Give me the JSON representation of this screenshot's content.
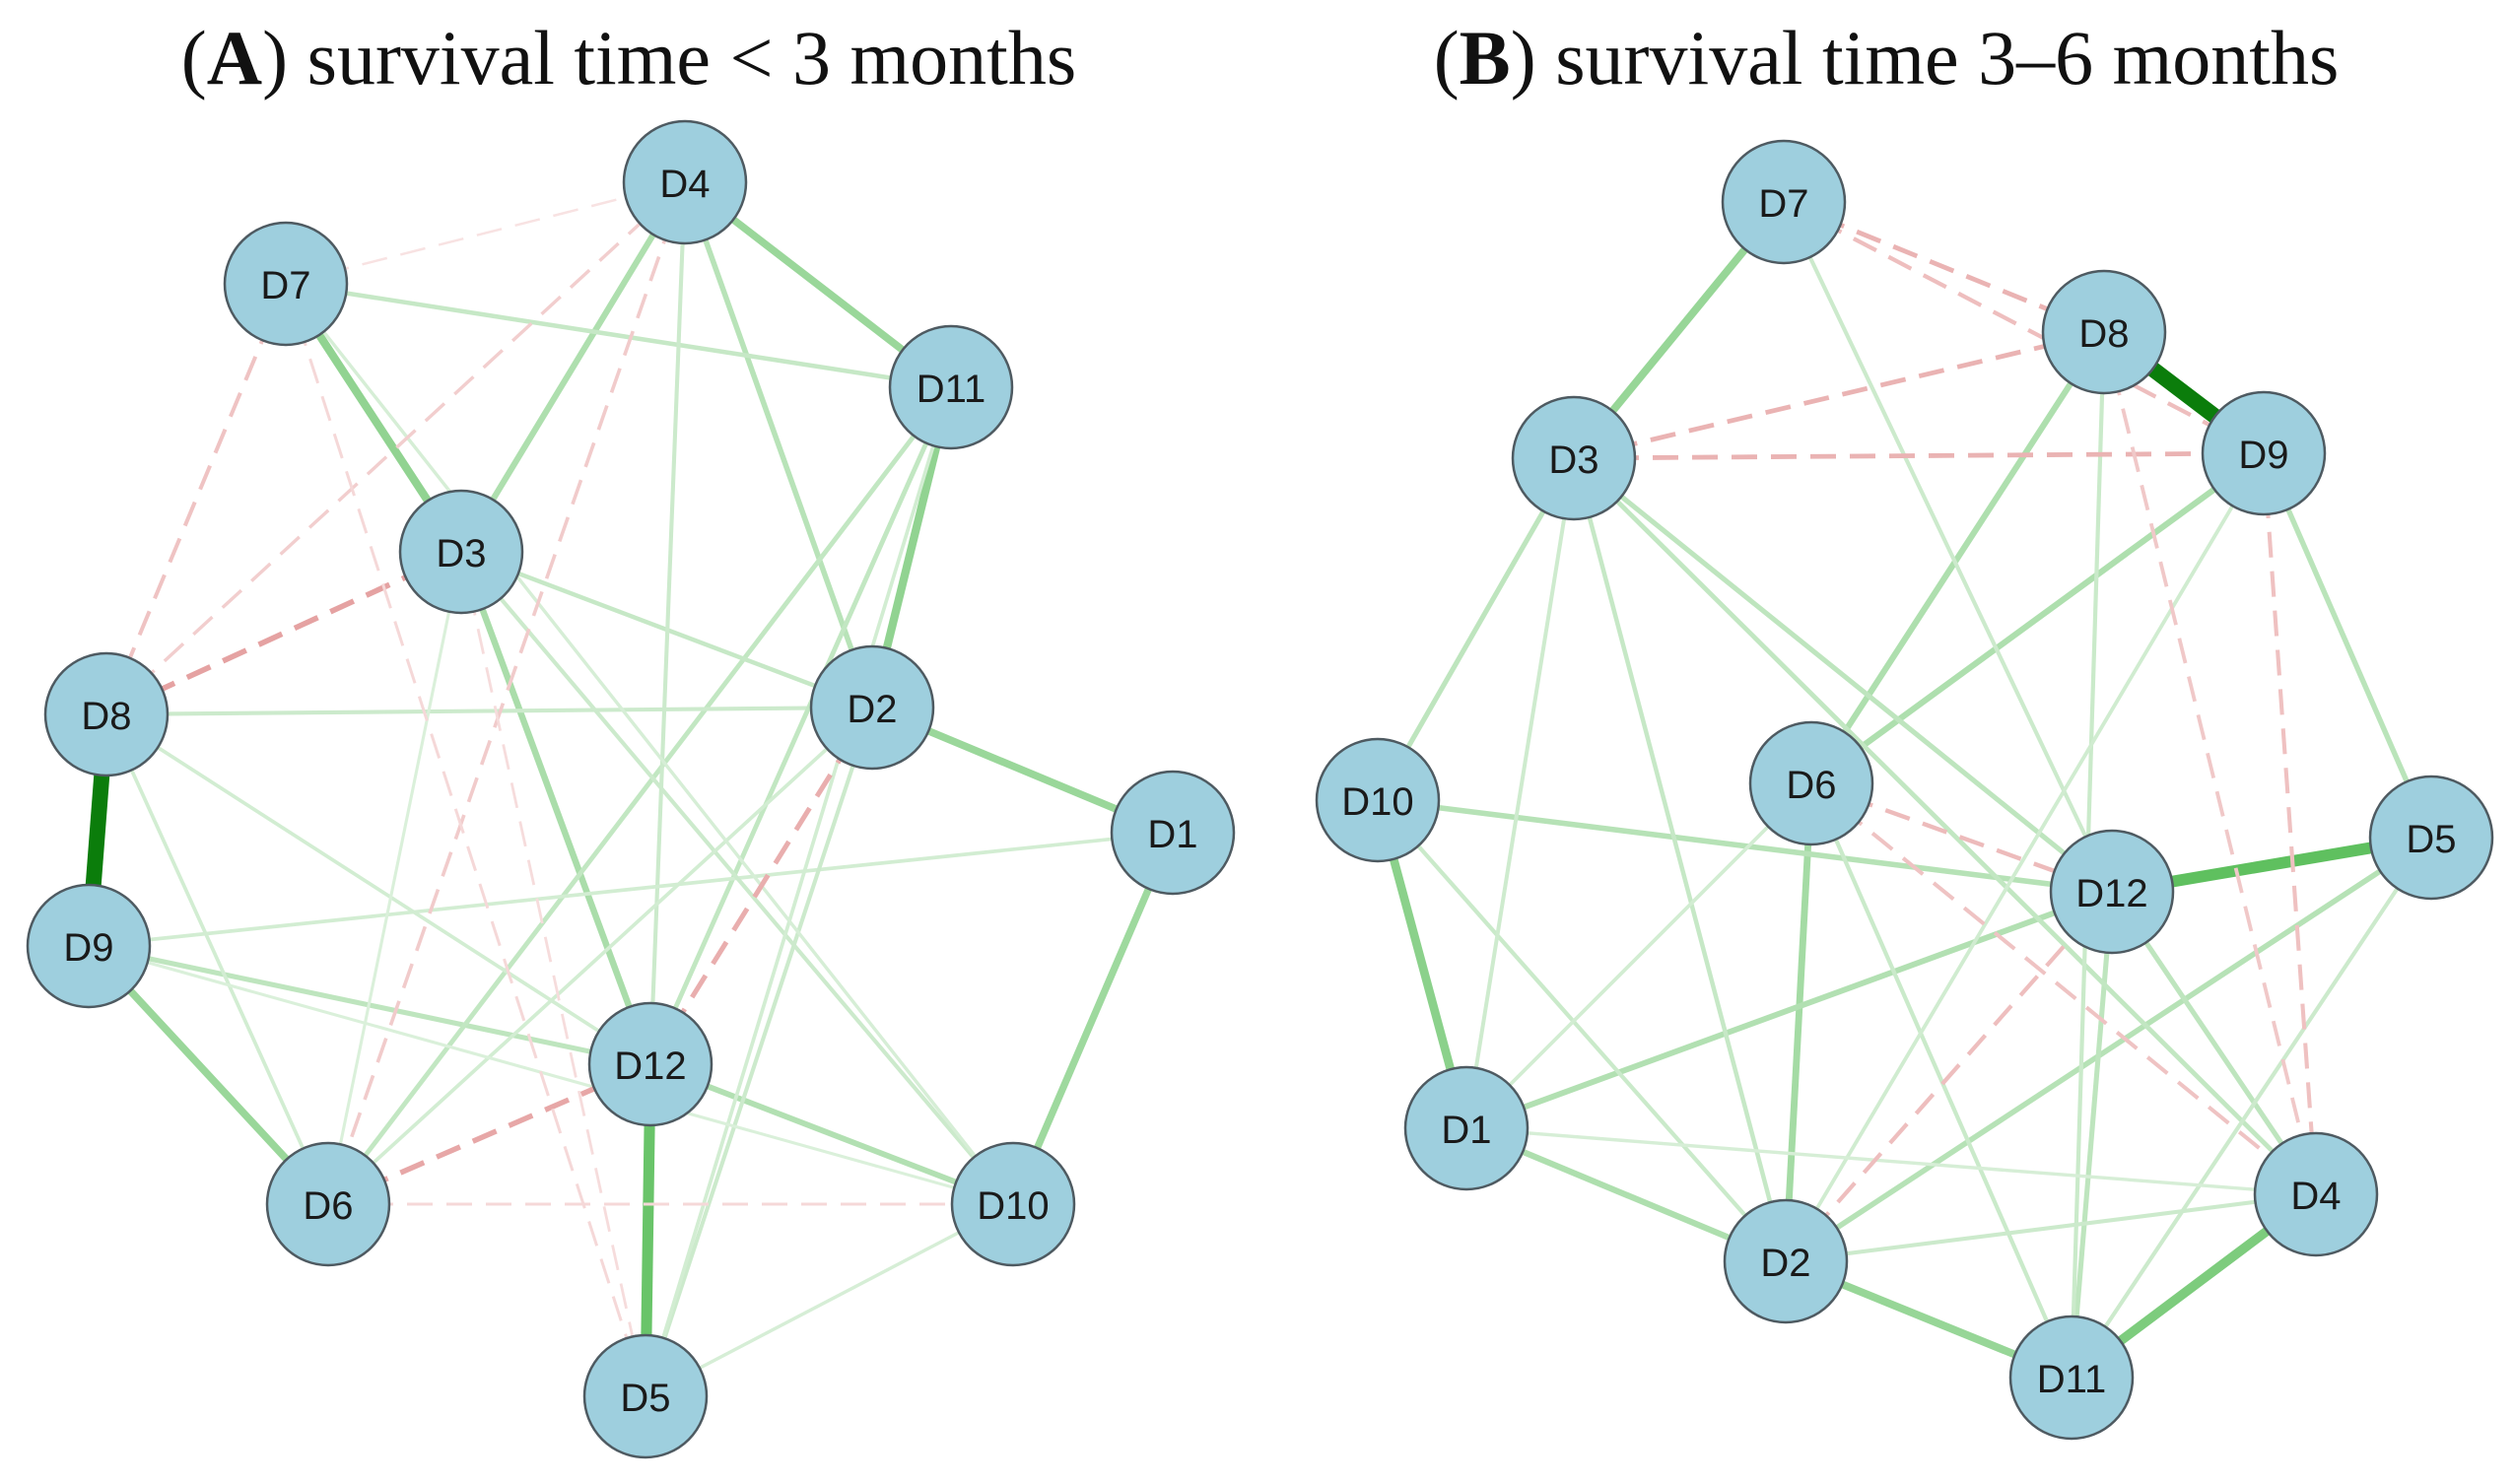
{
  "panels": [
    {
      "id": "A",
      "title_letter": "A",
      "title_text": "survival time < 3 months",
      "nodes": [
        "D1",
        "D2",
        "D3",
        "D4",
        "D5",
        "D6",
        "D7",
        "D8",
        "D9",
        "D10",
        "D11",
        "D12"
      ],
      "edges": [
        {
          "a": "D8",
          "b": "D9",
          "sign": "positive",
          "strength": 1.0
        },
        {
          "a": "D12",
          "b": "D5",
          "sign": "positive",
          "strength": 0.65
        },
        {
          "a": "D7",
          "b": "D3",
          "sign": "positive",
          "strength": 0.45
        },
        {
          "a": "D9",
          "b": "D6",
          "sign": "positive",
          "strength": 0.4
        },
        {
          "a": "D4",
          "b": "D11",
          "sign": "positive",
          "strength": 0.4
        },
        {
          "a": "D11",
          "b": "D2",
          "sign": "positive",
          "strength": 0.45
        },
        {
          "a": "D2",
          "b": "D1",
          "sign": "positive",
          "strength": 0.4
        },
        {
          "a": "D1",
          "b": "D10",
          "sign": "positive",
          "strength": 0.38
        },
        {
          "a": "D3",
          "b": "D12",
          "sign": "positive",
          "strength": 0.32
        },
        {
          "a": "D3",
          "b": "D4",
          "sign": "positive",
          "strength": 0.3
        },
        {
          "a": "D4",
          "b": "D2",
          "sign": "positive",
          "strength": 0.25
        },
        {
          "a": "D12",
          "b": "D10",
          "sign": "positive",
          "strength": 0.28
        },
        {
          "a": "D9",
          "b": "D12",
          "sign": "positive",
          "strength": 0.22
        },
        {
          "a": "D6",
          "b": "D11",
          "sign": "positive",
          "strength": 0.2
        },
        {
          "a": "D7",
          "b": "D11",
          "sign": "positive",
          "strength": 0.18
        },
        {
          "a": "D8",
          "b": "D2",
          "sign": "positive",
          "strength": 0.15
        },
        {
          "a": "D3",
          "b": "D2",
          "sign": "positive",
          "strength": 0.18
        },
        {
          "a": "D12",
          "b": "D11",
          "sign": "positive",
          "strength": 0.2
        },
        {
          "a": "D4",
          "b": "D12",
          "sign": "positive",
          "strength": 0.15
        },
        {
          "a": "D9",
          "b": "D1",
          "sign": "positive",
          "strength": 0.12
        },
        {
          "a": "D8",
          "b": "D6",
          "sign": "positive",
          "strength": 0.12
        },
        {
          "a": "D8",
          "b": "D12",
          "sign": "positive",
          "strength": 0.12
        },
        {
          "a": "D3",
          "b": "D10",
          "sign": "positive",
          "strength": 0.15
        },
        {
          "a": "D5",
          "b": "D2",
          "sign": "positive",
          "strength": 0.15
        },
        {
          "a": "D6",
          "b": "D2",
          "sign": "positive",
          "strength": 0.12
        },
        {
          "a": "D5",
          "b": "D10",
          "sign": "positive",
          "strength": 0.1
        },
        {
          "a": "D5",
          "b": "D11",
          "sign": "positive",
          "strength": 0.12
        },
        {
          "a": "D7",
          "b": "D10",
          "sign": "positive",
          "strength": 0.1
        },
        {
          "a": "D9",
          "b": "D10",
          "sign": "positive",
          "strength": 0.08
        },
        {
          "a": "D6",
          "b": "D3",
          "sign": "positive",
          "strength": 0.08
        },
        {
          "a": "D3",
          "b": "D8",
          "sign": "negative",
          "strength": 0.45
        },
        {
          "a": "D6",
          "b": "D12",
          "sign": "negative",
          "strength": 0.42
        },
        {
          "a": "D12",
          "b": "D2",
          "sign": "negative",
          "strength": 0.38
        },
        {
          "a": "D7",
          "b": "D8",
          "sign": "negative",
          "strength": 0.25
        },
        {
          "a": "D4",
          "b": "D6",
          "sign": "negative",
          "strength": 0.2
        },
        {
          "a": "D8",
          "b": "D4",
          "sign": "negative",
          "strength": 0.18
        },
        {
          "a": "D6",
          "b": "D10",
          "sign": "negative",
          "strength": 0.12
        },
        {
          "a": "D7",
          "b": "D5",
          "sign": "negative",
          "strength": 0.12
        },
        {
          "a": "D3",
          "b": "D5",
          "sign": "negative",
          "strength": 0.1
        },
        {
          "a": "D7",
          "b": "D4",
          "sign": "negative",
          "strength": 0.06
        }
      ]
    },
    {
      "id": "B",
      "title_letter": "B",
      "title_text": "survival time 3–6 months",
      "nodes": [
        "D1",
        "D2",
        "D3",
        "D4",
        "D5",
        "D6",
        "D7",
        "D8",
        "D9",
        "D10",
        "D11",
        "D12"
      ],
      "edges": [
        {
          "a": "D8",
          "b": "D9",
          "sign": "positive",
          "strength": 1.0
        },
        {
          "a": "D12",
          "b": "D5",
          "sign": "positive",
          "strength": 0.7
        },
        {
          "a": "D11",
          "b": "D4",
          "sign": "positive",
          "strength": 0.55
        },
        {
          "a": "D10",
          "b": "D1",
          "sign": "positive",
          "strength": 0.48
        },
        {
          "a": "D7",
          "b": "D3",
          "sign": "positive",
          "strength": 0.42
        },
        {
          "a": "D2",
          "b": "D11",
          "sign": "positive",
          "strength": 0.42
        },
        {
          "a": "D6",
          "b": "D2",
          "sign": "positive",
          "strength": 0.35
        },
        {
          "a": "D9",
          "b": "D6",
          "sign": "positive",
          "strength": 0.3
        },
        {
          "a": "D8",
          "b": "D6",
          "sign": "positive",
          "strength": 0.3
        },
        {
          "a": "D1",
          "b": "D12",
          "sign": "positive",
          "strength": 0.28
        },
        {
          "a": "D1",
          "b": "D2",
          "sign": "positive",
          "strength": 0.3
        },
        {
          "a": "D10",
          "b": "D12",
          "sign": "positive",
          "strength": 0.26
        },
        {
          "a": "D2",
          "b": "D5",
          "sign": "positive",
          "strength": 0.26
        },
        {
          "a": "D9",
          "b": "D5",
          "sign": "positive",
          "strength": 0.24
        },
        {
          "a": "D3",
          "b": "D10",
          "sign": "positive",
          "strength": 0.22
        },
        {
          "a": "D12",
          "b": "D11",
          "sign": "positive",
          "strength": 0.22
        },
        {
          "a": "D3",
          "b": "D12",
          "sign": "positive",
          "strength": 0.22
        },
        {
          "a": "D3",
          "b": "D4",
          "sign": "positive",
          "strength": 0.2
        },
        {
          "a": "D12",
          "b": "D4",
          "sign": "positive",
          "strength": 0.22
        },
        {
          "a": "D3",
          "b": "D2",
          "sign": "positive",
          "strength": 0.18
        },
        {
          "a": "D8",
          "b": "D11",
          "sign": "positive",
          "strength": 0.16
        },
        {
          "a": "D6",
          "b": "D11",
          "sign": "positive",
          "strength": 0.16
        },
        {
          "a": "D7",
          "b": "D12",
          "sign": "positive",
          "strength": 0.15
        },
        {
          "a": "D10",
          "b": "D2",
          "sign": "positive",
          "strength": 0.16
        },
        {
          "a": "D3",
          "b": "D1",
          "sign": "positive",
          "strength": 0.14
        },
        {
          "a": "D2",
          "b": "D4",
          "sign": "positive",
          "strength": 0.15
        },
        {
          "a": "D9",
          "b": "D2",
          "sign": "positive",
          "strength": 0.13
        },
        {
          "a": "D5",
          "b": "D11",
          "sign": "positive",
          "strength": 0.15
        },
        {
          "a": "D6",
          "b": "D1",
          "sign": "positive",
          "strength": 0.12
        },
        {
          "a": "D1",
          "b": "D4",
          "sign": "positive",
          "strength": 0.1
        },
        {
          "a": "D3",
          "b": "D9",
          "sign": "negative",
          "strength": 0.35
        },
        {
          "a": "D3",
          "b": "D8",
          "sign": "negative",
          "strength": 0.35
        },
        {
          "a": "D7",
          "b": "D8",
          "sign": "negative",
          "strength": 0.35
        },
        {
          "a": "D7",
          "b": "D9",
          "sign": "negative",
          "strength": 0.28
        },
        {
          "a": "D6",
          "b": "D12",
          "sign": "negative",
          "strength": 0.3
        },
        {
          "a": "D2",
          "b": "D12",
          "sign": "negative",
          "strength": 0.28
        },
        {
          "a": "D9",
          "b": "D4",
          "sign": "negative",
          "strength": 0.26
        },
        {
          "a": "D6",
          "b": "D4",
          "sign": "negative",
          "strength": 0.25
        },
        {
          "a": "D8",
          "b": "D4",
          "sign": "negative",
          "strength": 0.22
        }
      ]
    }
  ]
}
